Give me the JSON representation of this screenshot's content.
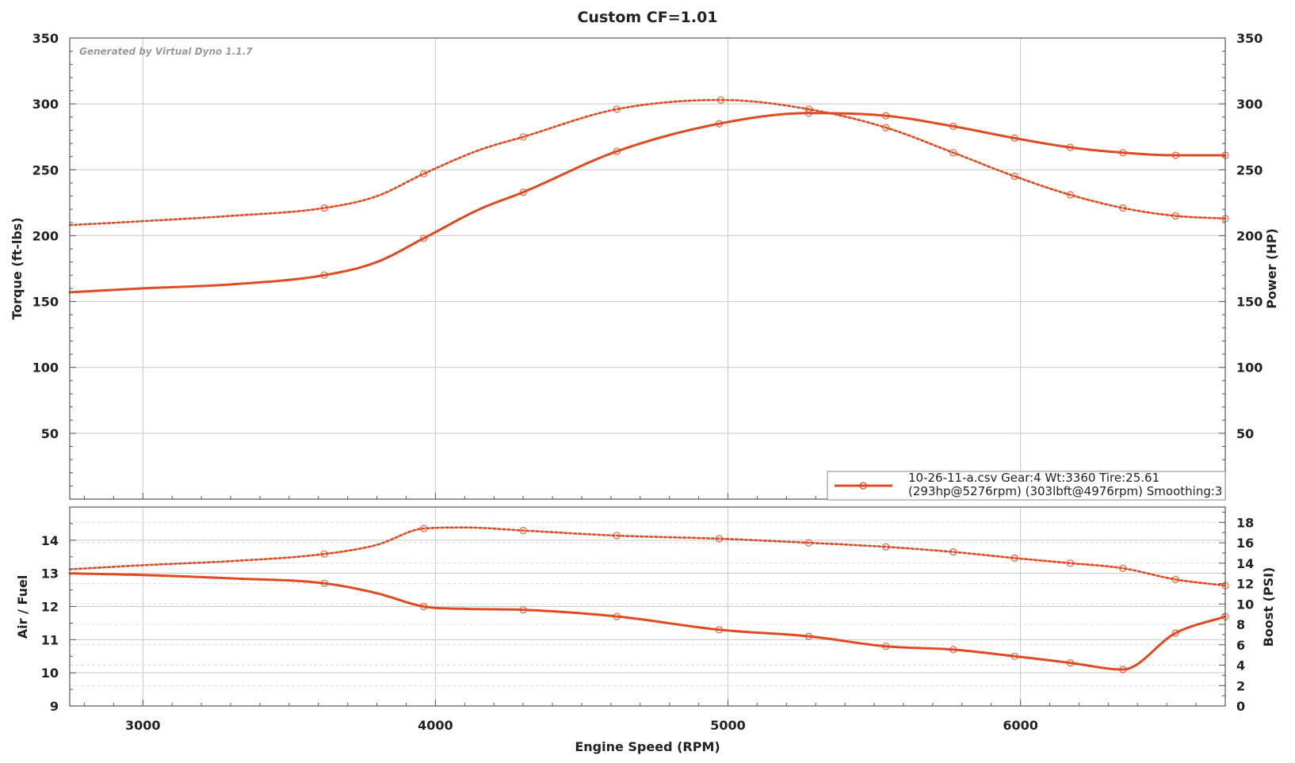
{
  "chart_data": [
    {
      "type": "line",
      "title": "Custom CF=1.01",
      "watermark": "Generated by Virtual Dyno 1.1.7",
      "xlabel": "Engine Speed (RPM)",
      "ylabel": "Torque (ft-lbs)",
      "y2label": "Power (HP)",
      "xlim": [
        2750,
        6700
      ],
      "ylim": [
        0,
        350
      ],
      "y2lim": [
        0,
        350
      ],
      "xticks": [
        "3000",
        "4000",
        "5000",
        "6000"
      ],
      "xtick_values": [
        3000,
        4000,
        5000,
        6000
      ],
      "yticks": [
        "50",
        "100",
        "150",
        "200",
        "250",
        "300",
        "350"
      ],
      "ytick_values": [
        50,
        100,
        150,
        200,
        250,
        300,
        350
      ],
      "y2ticks": [
        "50",
        "100",
        "150",
        "200",
        "250",
        "300",
        "350"
      ],
      "y2tick_values": [
        50,
        100,
        150,
        200,
        250,
        300,
        350
      ],
      "grid": true,
      "legend": {
        "placement": "bottom-right",
        "line1": "10-26-11-a.csv Gear:4 Wt:3360 Tire:25.61",
        "line2": "(293hp@5276rpm) (303lbft@4976rpm) Smoothing:3"
      },
      "color": "#e04a20",
      "series": [
        {
          "style": "solid",
          "x": [
            2750,
            3000,
            3300,
            3620,
            3800,
            3960,
            4150,
            4300,
            4620,
            4970,
            5276,
            5540,
            5770,
            5980,
            6170,
            6350,
            6530,
            6700
          ],
          "y": [
            157,
            160,
            163,
            170,
            180,
            198,
            220,
            233,
            264,
            285,
            293,
            291,
            283,
            274,
            267,
            263,
            261,
            261
          ],
          "markers": [
            3620,
            3960,
            4300,
            4620,
            4970,
            5276,
            5540,
            5770,
            5980,
            6170,
            6350,
            6530,
            6700
          ]
        },
        {
          "style": "dotted",
          "x": [
            2750,
            3000,
            3300,
            3620,
            3800,
            3960,
            4150,
            4300,
            4620,
            4976,
            5276,
            5540,
            5770,
            5980,
            6170,
            6350,
            6530,
            6700
          ],
          "y": [
            208,
            211,
            215,
            221,
            230,
            247,
            265,
            275,
            296,
            303,
            296,
            282,
            263,
            245,
            231,
            221,
            215,
            213
          ],
          "markers": [
            3620,
            3960,
            4300,
            4620,
            4976,
            5276,
            5540,
            5770,
            5980,
            6170,
            6350,
            6530,
            6700
          ]
        }
      ]
    },
    {
      "type": "line",
      "ylabel": "Air / Fuel",
      "y2label": "Boost (PSI)",
      "xlim": [
        2750,
        6700
      ],
      "ylim": [
        9,
        15
      ],
      "y2lim": [
        0,
        19.5
      ],
      "yticks": [
        "9",
        "10",
        "11",
        "12",
        "13",
        "14"
      ],
      "ytick_values": [
        9,
        10,
        11,
        12,
        13,
        14
      ],
      "y2ticks": [
        "0",
        "2",
        "4",
        "6",
        "8",
        "10",
        "12",
        "14",
        "16",
        "18"
      ],
      "y2tick_values": [
        0,
        2,
        4,
        6,
        8,
        10,
        12,
        14,
        16,
        18
      ],
      "grid": true,
      "color": "#e04a20",
      "series": [
        {
          "style": "solid",
          "axis": "left",
          "x": [
            2750,
            3000,
            3300,
            3620,
            3800,
            3960,
            4100,
            4300,
            4620,
            4970,
            5276,
            5540,
            5770,
            5980,
            6170,
            6350,
            6530,
            6700
          ],
          "y": [
            13.0,
            12.95,
            12.85,
            12.7,
            12.4,
            12.0,
            11.93,
            11.9,
            11.7,
            11.3,
            11.1,
            10.8,
            10.7,
            10.5,
            10.3,
            10.1,
            11.2,
            11.7
          ],
          "markers": [
            3620,
            3960,
            4300,
            4620,
            4970,
            5276,
            5540,
            5770,
            5980,
            6170,
            6350,
            6530,
            6700
          ]
        },
        {
          "style": "dotted",
          "axis": "right",
          "x": [
            2750,
            3000,
            3300,
            3620,
            3800,
            3960,
            4100,
            4300,
            4620,
            4970,
            5276,
            5540,
            5770,
            5980,
            6170,
            6350,
            6530,
            6700
          ],
          "y": [
            13.4,
            13.8,
            14.2,
            14.9,
            15.8,
            17.4,
            17.5,
            17.2,
            16.7,
            16.4,
            16.0,
            15.6,
            15.1,
            14.5,
            14.0,
            13.5,
            12.4,
            11.8
          ],
          "markers": [
            3620,
            3960,
            4300,
            4620,
            4970,
            5276,
            5540,
            5770,
            5980,
            6170,
            6350,
            6530,
            6700
          ]
        }
      ]
    }
  ]
}
